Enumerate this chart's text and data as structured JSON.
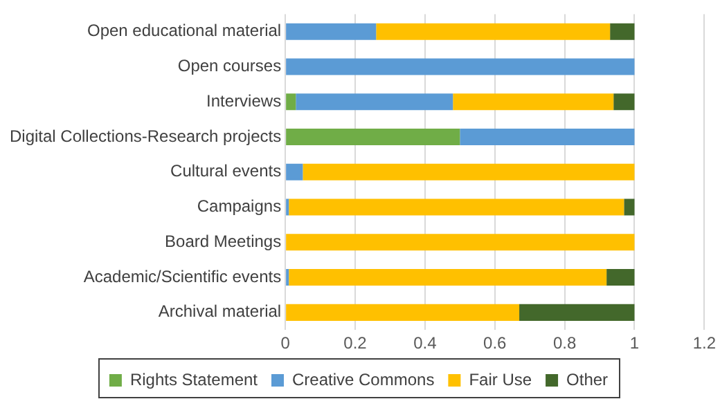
{
  "chart_data": {
    "type": "bar",
    "orientation": "horizontal",
    "stacked": true,
    "categories": [
      "Open educational material",
      "Open courses",
      "Interviews",
      "Digital Collections-Research projects",
      "Cultural events",
      "Campaigns",
      "Board Meetings",
      "Academic/Scientific events",
      "Archival material"
    ],
    "series": [
      {
        "name": "Rights Statement",
        "color": "#70ad47",
        "values": [
          0,
          0,
          0.03,
          0.5,
          0,
          0,
          0,
          0,
          0
        ]
      },
      {
        "name": "Creative Commons",
        "color": "#5b9bd5",
        "values": [
          0.26,
          1,
          0.45,
          0.5,
          0.05,
          0.01,
          0,
          0.01,
          0
        ]
      },
      {
        "name": "Fair Use",
        "color": "#ffc000",
        "values": [
          0.67,
          0,
          0.46,
          0,
          0.95,
          0.96,
          1,
          0.91,
          0.67
        ]
      },
      {
        "name": "Other",
        "color": "#43682b",
        "values": [
          0.07,
          0,
          0.06,
          0,
          0,
          0.03,
          0,
          0.08,
          0.33
        ]
      }
    ],
    "xlim": [
      0,
      1.2
    ],
    "xticks": [
      0,
      0.2,
      0.4,
      0.6,
      0.8,
      1,
      1.2
    ],
    "grid": "x",
    "legend": "bottom"
  }
}
